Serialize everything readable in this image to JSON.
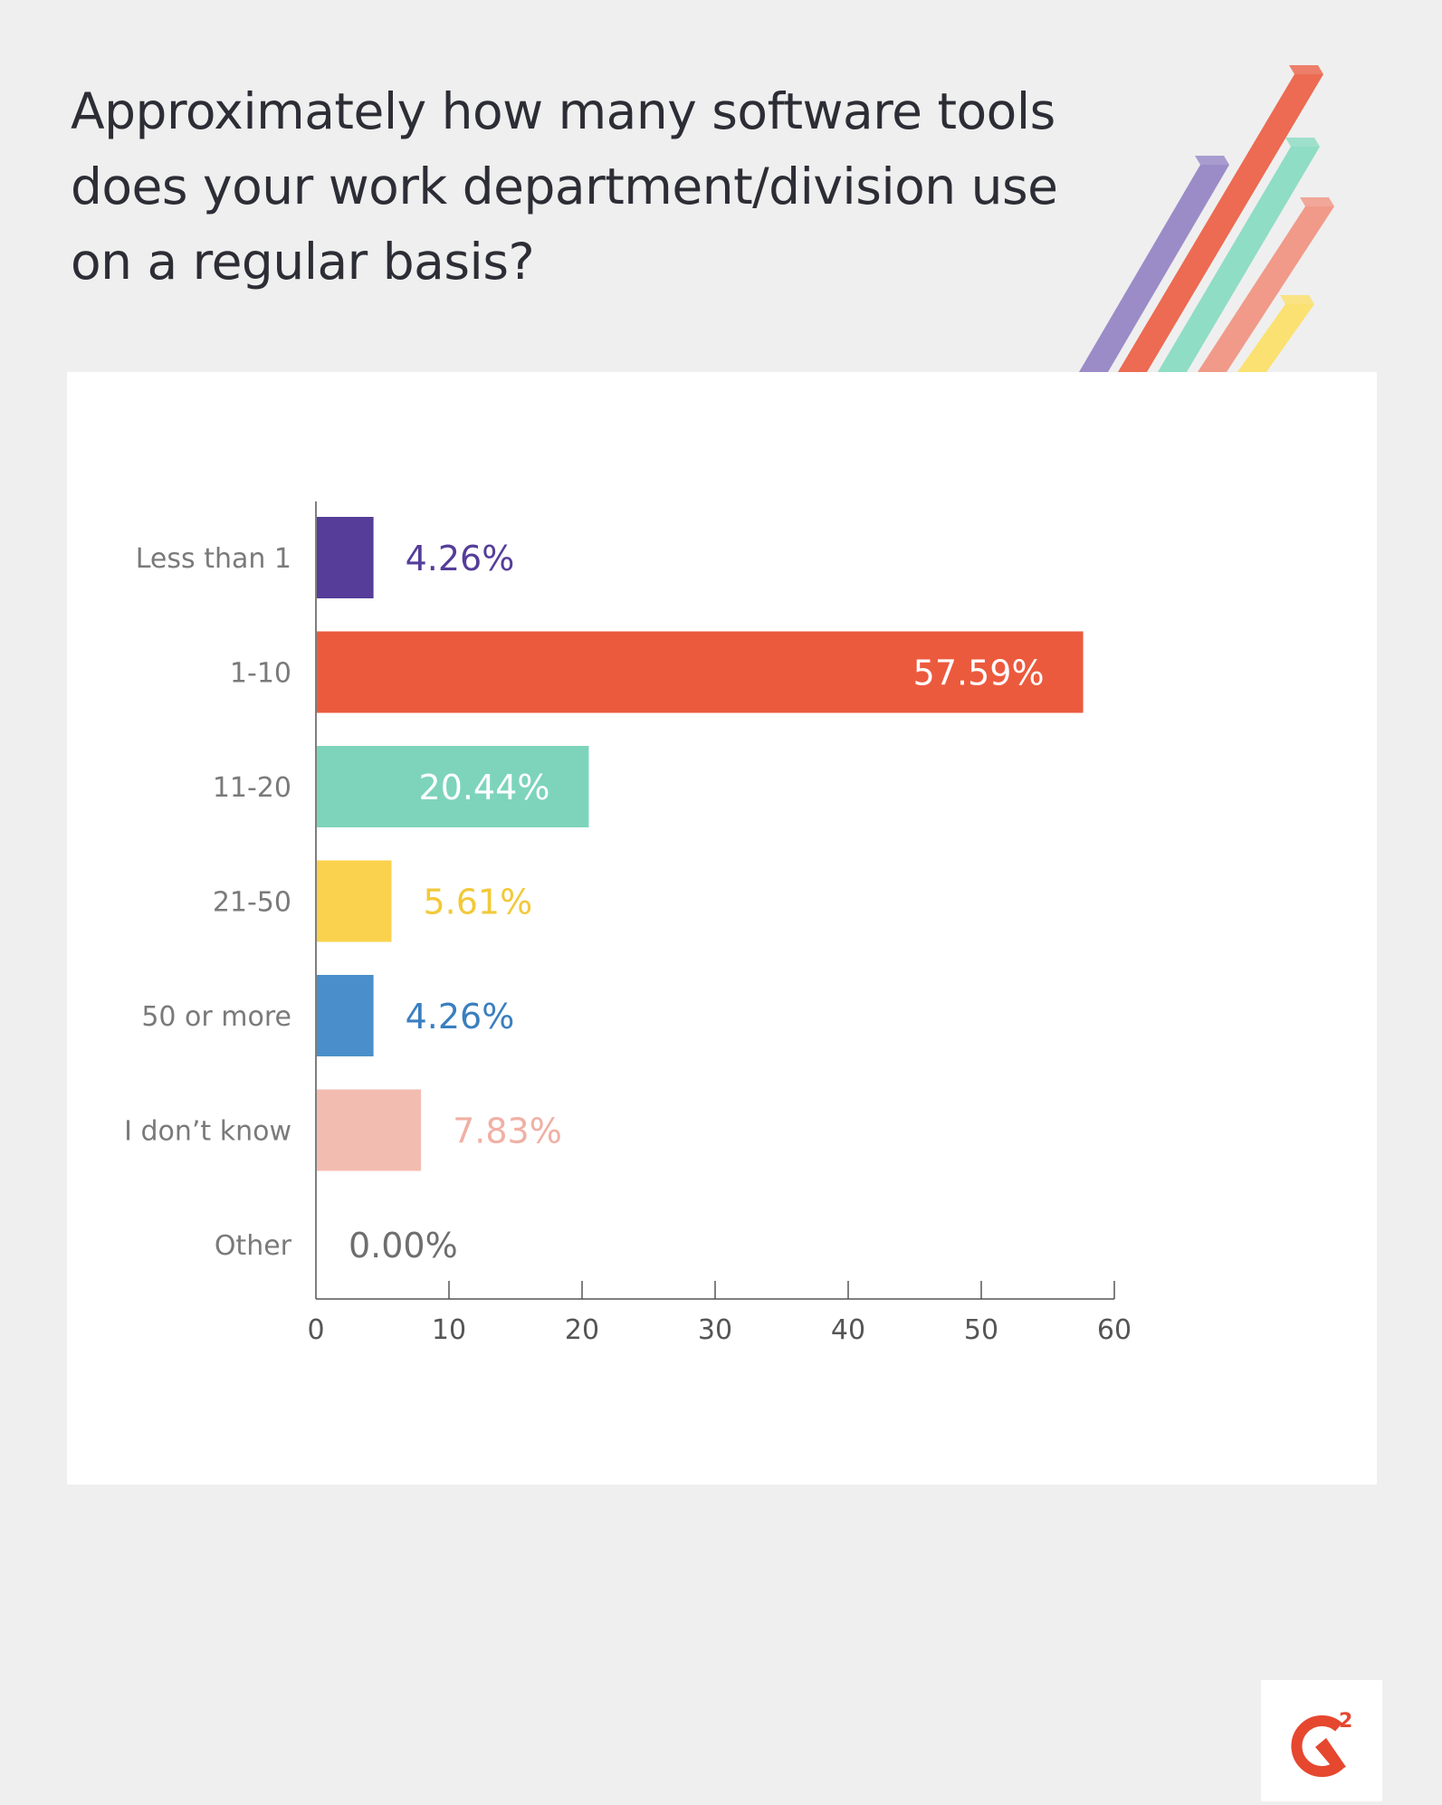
{
  "chart_data": {
    "type": "bar",
    "orientation": "horizontal",
    "title": "Approximately how many software tools does your work department/division use on a regular basis?",
    "categories": [
      "Less than 1",
      "1-10",
      "11-20",
      "21-50",
      "50 or more",
      "I don’t know",
      "Other"
    ],
    "values": [
      4.26,
      57.59,
      20.44,
      5.61,
      4.26,
      7.83,
      0.0
    ],
    "value_labels": [
      "4.26%",
      "57.59%",
      "20.44%",
      "5.61%",
      "4.26%",
      "7.83%",
      "0.00%"
    ],
    "bar_colors": [
      "#553d99",
      "#ec5a3e",
      "#7dd4bb",
      "#fad24e",
      "#4a8fcb",
      "#f3bcb1",
      "#f3bcb1"
    ],
    "label_colors": [
      "#553d99",
      "#ffffff",
      "#ffffff",
      "#f2c93a",
      "#3a7fbf",
      "#f0b0a4",
      "#6e6e6e"
    ],
    "label_inside": [
      false,
      true,
      true,
      false,
      false,
      false,
      false
    ],
    "xlim": [
      0,
      60
    ],
    "xticks": [
      0,
      10,
      20,
      30,
      40,
      50,
      60
    ],
    "xlabel": "",
    "ylabel": "",
    "grid": false,
    "legend": "none"
  },
  "branding": {
    "logo": "g2-logo-icon",
    "logo_color": "#e6472f",
    "stripe_colors": [
      "#9b8cc8",
      "#ec6b52",
      "#8fddc4",
      "#f19a89",
      "#fbe171"
    ]
  }
}
